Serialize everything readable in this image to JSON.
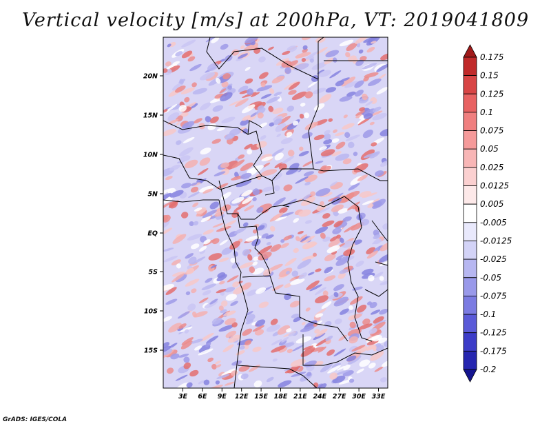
{
  "title": "Vertical velocity [m/s] at 200hPa, VT: 2019041809",
  "credit": "GrADS: IGES/COLA",
  "map": {
    "lat_labels": [
      "20N",
      "15N",
      "10N",
      "5N",
      "EQ",
      "5S",
      "10S",
      "15S"
    ],
    "lon_labels": [
      "3E",
      "6E",
      "9E",
      "12E",
      "15E",
      "18E",
      "21E",
      "24E",
      "27E",
      "30E",
      "33E"
    ]
  },
  "colorbar": {
    "labels": [
      "0.175",
      "0.15",
      "0.125",
      "0.1",
      "0.075",
      "0.05",
      "0.025",
      "0.0125",
      "0.005",
      "-0.005",
      "-0.0125",
      "-0.025",
      "-0.05",
      "-0.075",
      "-0.1",
      "-0.125",
      "-0.175",
      "-0.2"
    ],
    "colors": [
      "#a01a1a",
      "#c02a2a",
      "#d84545",
      "#e86262",
      "#f07f7f",
      "#f59a9a",
      "#f8b6b6",
      "#fbd0d0",
      "#fde9e9",
      "#ffffff",
      "#e9e9fc",
      "#d3d3f7",
      "#b7b7f1",
      "#9999ea",
      "#7b7be2",
      "#5a5ad8",
      "#3c3cc8",
      "#2626b0",
      "#14148f"
    ]
  }
}
